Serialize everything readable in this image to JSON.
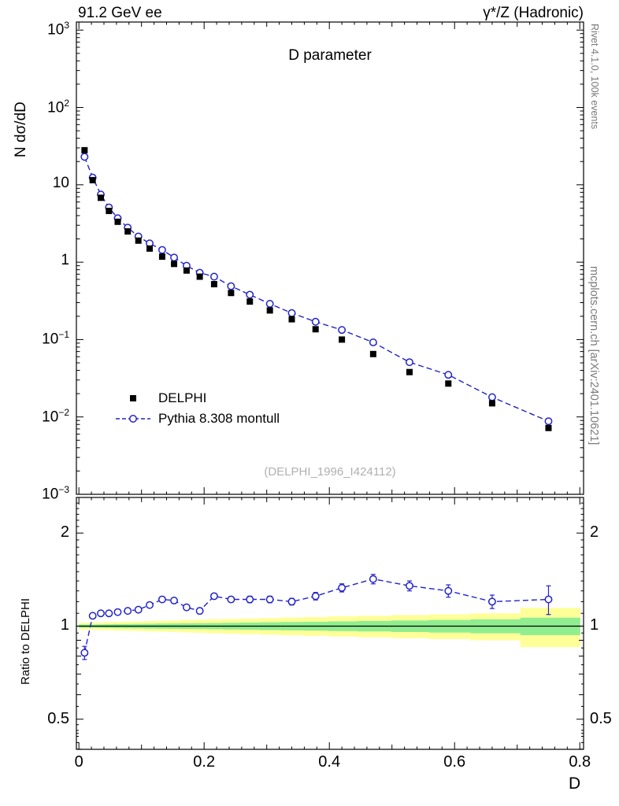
{
  "header": {
    "left": "91.2 GeV ee",
    "right": "γ*/Z (Hadronic)"
  },
  "right_margin": {
    "top": "Rivet 4.1.0, 100k events",
    "bottom": "mcplots.cern.ch [arXiv:2401.10621]"
  },
  "main_plot": {
    "title": "D parameter",
    "ylabel": "N dσ/dD",
    "watermark": "(DELPHI_1996_I424112)",
    "legend": [
      {
        "label": "DELPHI",
        "marker": "black-filled-square"
      },
      {
        "label": "Pythia 8.308 montull",
        "marker": "blue-open-circle-dashed-line"
      }
    ]
  },
  "ratio_plot": {
    "ylabel": "Ratio to DELPHI",
    "tick_values": [
      0.5,
      1,
      2
    ],
    "tick_labels": [
      "0.5",
      "1",
      "2"
    ]
  },
  "x_axis": {
    "label": "D",
    "tick_values": [
      0,
      0.2,
      0.4,
      0.6,
      0.8
    ],
    "tick_labels": [
      "0",
      "0.2",
      "0.4",
      "0.6",
      "0.8"
    ]
  },
  "colors": {
    "mc_line": "#2222cc",
    "data_marker": "#000000",
    "band_inner_green": "#90ee90",
    "band_outer_yellow": "#ffff99",
    "reference_line": "#000000",
    "watermark_gray": "#b0b0b0",
    "margin_text_gray": "#7a7a7a"
  },
  "chart_data": [
    {
      "type": "scatter",
      "title": "D parameter",
      "xlabel": "D",
      "ylabel": "N dσ/dD",
      "x_range": [
        0,
        0.8
      ],
      "y_scale": "log",
      "y_range": [
        0.001,
        1000
      ],
      "legend_position": "lower-left-inside",
      "series": [
        {
          "name": "DELPHI",
          "marker": "filled-square",
          "color": "#000000",
          "x": [
            0.009,
            0.022,
            0.035,
            0.048,
            0.062,
            0.078,
            0.095,
            0.113,
            0.133,
            0.152,
            0.172,
            0.193,
            0.216,
            0.243,
            0.273,
            0.305,
            0.34,
            0.378,
            0.42,
            0.47,
            0.528,
            0.59,
            0.66,
            0.75
          ],
          "y": [
            28,
            11.5,
            6.8,
            4.6,
            3.33,
            2.5,
            1.9,
            1.5,
            1.18,
            0.95,
            0.78,
            0.65,
            0.52,
            0.4,
            0.31,
            0.238,
            0.183,
            0.136,
            0.1,
            0.065,
            0.038,
            0.027,
            0.015,
            0.0072
          ]
        },
        {
          "name": "Pythia 8.308 montull",
          "marker": "open-circle",
          "line": "dashed",
          "color": "#2222cc",
          "x": [
            0.009,
            0.022,
            0.035,
            0.048,
            0.062,
            0.078,
            0.095,
            0.113,
            0.133,
            0.152,
            0.172,
            0.193,
            0.216,
            0.243,
            0.273,
            0.305,
            0.34,
            0.378,
            0.42,
            0.47,
            0.528,
            0.59,
            0.66,
            0.75
          ],
          "y": [
            23,
            12.4,
            7.5,
            5.1,
            3.7,
            2.8,
            2.15,
            1.75,
            1.44,
            1.15,
            0.9,
            0.73,
            0.65,
            0.49,
            0.38,
            0.29,
            0.22,
            0.17,
            0.133,
            0.092,
            0.051,
            0.035,
            0.018,
            0.0088
          ]
        }
      ]
    },
    {
      "type": "ratio",
      "ylabel": "Ratio to DELPHI",
      "y_scale": "log",
      "y_range": [
        0.4,
        2.6
      ],
      "reference": 1,
      "x": [
        0.009,
        0.022,
        0.035,
        0.048,
        0.062,
        0.078,
        0.095,
        0.113,
        0.133,
        0.152,
        0.172,
        0.193,
        0.216,
        0.243,
        0.273,
        0.305,
        0.34,
        0.378,
        0.42,
        0.47,
        0.528,
        0.59,
        0.66,
        0.75
      ],
      "ratio": [
        0.82,
        1.08,
        1.1,
        1.1,
        1.11,
        1.12,
        1.13,
        1.17,
        1.22,
        1.21,
        1.15,
        1.12,
        1.25,
        1.22,
        1.22,
        1.22,
        1.2,
        1.25,
        1.33,
        1.42,
        1.35,
        1.3,
        1.2,
        1.22
      ],
      "ratio_err": [
        0.04,
        0.02,
        0.015,
        0.015,
        0.015,
        0.015,
        0.015,
        0.02,
        0.02,
        0.02,
        0.02,
        0.025,
        0.025,
        0.025,
        0.03,
        0.03,
        0.03,
        0.035,
        0.04,
        0.05,
        0.05,
        0.06,
        0.06,
        0.13
      ],
      "band_edges": [
        0,
        0.0155,
        0.0285,
        0.0415,
        0.055,
        0.07,
        0.0865,
        0.104,
        0.123,
        0.1425,
        0.162,
        0.1825,
        0.2045,
        0.2295,
        0.258,
        0.289,
        0.3225,
        0.359,
        0.399,
        0.445,
        0.499,
        0.559,
        0.625,
        0.705,
        0.8
      ],
      "band_green_halfwidth": [
        0.012,
        0.012,
        0.013,
        0.014,
        0.015,
        0.016,
        0.017,
        0.018,
        0.019,
        0.02,
        0.021,
        0.022,
        0.023,
        0.025,
        0.027,
        0.029,
        0.031,
        0.033,
        0.036,
        0.039,
        0.043,
        0.047,
        0.052,
        0.065
      ],
      "band_yellow_halfwidth": [
        0.025,
        0.026,
        0.028,
        0.03,
        0.032,
        0.034,
        0.036,
        0.038,
        0.04,
        0.043,
        0.046,
        0.049,
        0.052,
        0.055,
        0.058,
        0.062,
        0.066,
        0.07,
        0.075,
        0.08,
        0.086,
        0.092,
        0.1,
        0.145
      ]
    }
  ]
}
